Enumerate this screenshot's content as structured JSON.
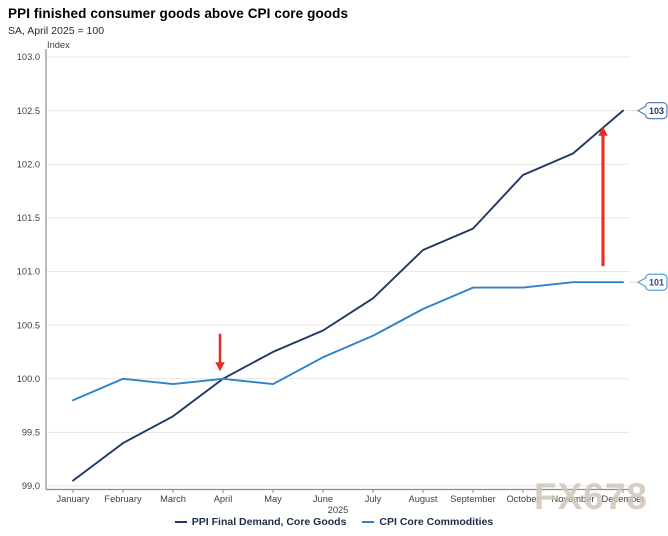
{
  "watermark": "FX678",
  "chart_data": {
    "type": "line",
    "title": "PPI finished consumer goods above CPI core goods",
    "subtitle": "SA, April 2025 = 100",
    "ylabel": "Index",
    "x_axis_year": "2025",
    "categories": [
      "January",
      "February",
      "March",
      "April",
      "May",
      "June",
      "July",
      "August",
      "September",
      "October",
      "November",
      "December"
    ],
    "ylim": [
      99.0,
      103.0
    ],
    "yticklabels": [
      "103.0",
      "102.5",
      "102.0",
      "101.5",
      "101.0",
      "100.5",
      "100.0",
      "99.5",
      "99.0"
    ],
    "grid": "horizontal",
    "legend_position": "bottom",
    "series": [
      {
        "name": "PPI Final Demand, Core Goods",
        "color": "#1F3864",
        "values": [
          99.05,
          99.4,
          99.65,
          100.0,
          100.25,
          100.45,
          100.75,
          101.2,
          101.4,
          101.9,
          102.1,
          102.5
        ]
      },
      {
        "name": "CPI Core Commodities",
        "color": "#2E82C9",
        "values": [
          99.8,
          100.0,
          99.95,
          100.0,
          99.95,
          100.2,
          100.4,
          100.65,
          100.85,
          100.85,
          100.9,
          100.9
        ]
      }
    ],
    "callouts": [
      {
        "label": "103",
        "series_index": 0,
        "border_color": "#5C7FB8",
        "text_color": "#1F3864"
      },
      {
        "label": "101",
        "series_index": 1,
        "border_color": "#57A0DB",
        "text_color": "#1F4E8C"
      }
    ],
    "annotations": [
      {
        "type": "arrow-down",
        "x_category": "April",
        "x_offset": -3,
        "tail_value": 100.42,
        "tip_value": 100.07,
        "color": "#E62E25"
      },
      {
        "type": "arrow-up",
        "x_category": "December",
        "x_offset": -20,
        "tail_value": 101.05,
        "tip_value": 102.35,
        "color": "#E62E25"
      }
    ],
    "colors": {
      "gridline": "#E7E7E7",
      "axis": "#8C8C8C",
      "tick_text": "#3F3F3F",
      "connector": "#D8D8D8"
    }
  }
}
